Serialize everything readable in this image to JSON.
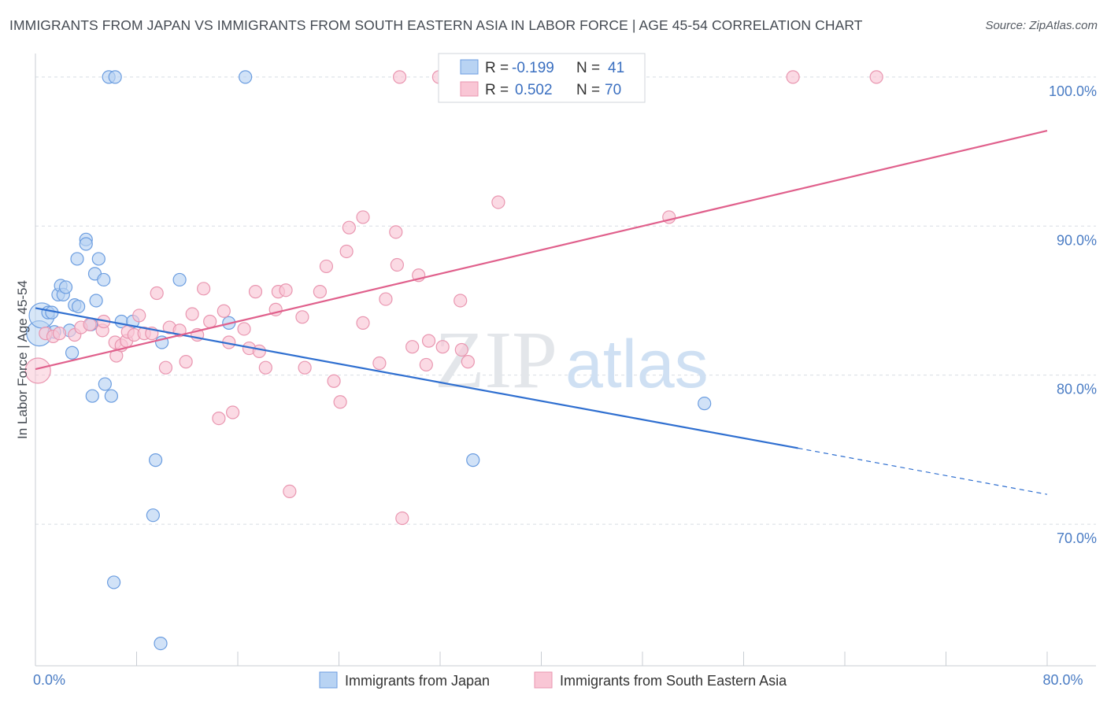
{
  "title": "IMMIGRANTS FROM JAPAN VS IMMIGRANTS FROM SOUTH EASTERN ASIA IN LABOR FORCE | AGE 45-54 CORRELATION CHART",
  "source": "Source: ZipAtlas.com",
  "watermark": {
    "zip": "ZIP",
    "atlas": "atlas"
  },
  "legend": {
    "r_label": "R =",
    "n_label": "N =",
    "japan": {
      "r": "-0.199",
      "n": "41"
    },
    "sea": {
      "r": "0.502",
      "n": "70"
    }
  },
  "colors": {
    "japan_fill": "#b8d3f3",
    "japan_stroke": "#6b9de0",
    "japan_line": "#2f6fd0",
    "sea_fill": "#f9c6d5",
    "sea_stroke": "#e996b0",
    "sea_line": "#e0608c",
    "grid": "#d8dde3",
    "tick_text": "#4a7cc4"
  },
  "chart_data": {
    "type": "scatter",
    "title": "IMMIGRANTS FROM JAPAN VS IMMIGRANTS FROM SOUTH EASTERN ASIA IN LABOR FORCE | AGE 45-54 CORRELATION CHART",
    "xlabel": "",
    "ylabel": "In Labor Force | Age 45-54",
    "xlim": [
      0,
      80
    ],
    "ylim": [
      60.5,
      102
    ],
    "x_tick_labels": [
      {
        "value": 0,
        "label": "0.0%"
      },
      {
        "value": 80,
        "label": "80.0%"
      }
    ],
    "x_minor_ticks": [
      8,
      16,
      24,
      32,
      40,
      48,
      56,
      64,
      72,
      80
    ],
    "y_ticks": [
      {
        "value": 100,
        "label": "100.0%"
      },
      {
        "value": 90,
        "label": "90.0%"
      },
      {
        "value": 80,
        "label": "80.0%"
      },
      {
        "value": 70,
        "label": "70.0%"
      }
    ],
    "series": [
      {
        "name": "Immigrants from Japan",
        "color": "#6b9de0",
        "points": [
          [
            0.3,
            82.8
          ],
          [
            0.5,
            84.0
          ],
          [
            1.0,
            84.2
          ],
          [
            1.3,
            84.2
          ],
          [
            1.5,
            82.9
          ],
          [
            1.8,
            85.4
          ],
          [
            2.0,
            86.0
          ],
          [
            2.2,
            85.4
          ],
          [
            2.4,
            85.9
          ],
          [
            2.7,
            83.0
          ],
          [
            2.9,
            81.5
          ],
          [
            3.1,
            84.7
          ],
          [
            3.3,
            87.8
          ],
          [
            3.4,
            84.6
          ],
          [
            4.0,
            89.1
          ],
          [
            4.0,
            88.8
          ],
          [
            4.4,
            83.4
          ],
          [
            4.5,
            78.6
          ],
          [
            4.7,
            86.8
          ],
          [
            4.8,
            85.0
          ],
          [
            5.0,
            87.8
          ],
          [
            5.4,
            86.4
          ],
          [
            5.5,
            79.4
          ],
          [
            5.8,
            100.0
          ],
          [
            6.0,
            78.6
          ],
          [
            6.2,
            66.1
          ],
          [
            6.3,
            100.0
          ],
          [
            6.8,
            83.6
          ],
          [
            7.7,
            83.6
          ],
          [
            9.5,
            74.3
          ],
          [
            9.3,
            70.6
          ],
          [
            9.9,
            62.0
          ],
          [
            10.0,
            82.2
          ],
          [
            11.4,
            86.4
          ],
          [
            15.3,
            83.5
          ],
          [
            16.6,
            100.0
          ],
          [
            34.6,
            74.3
          ],
          [
            52.9,
            78.1
          ]
        ],
        "regression": {
          "x0": 0,
          "y0": 84.5,
          "x1": 60.3,
          "y1": 75.1,
          "dash_to_x": 80,
          "dash_to_y": 72.0
        }
      },
      {
        "name": "Immigrants from South Eastern Asia",
        "color": "#e996b0",
        "points": [
          [
            0.2,
            80.3
          ],
          [
            0.8,
            82.8
          ],
          [
            1.4,
            82.6
          ],
          [
            1.9,
            82.8
          ],
          [
            3.1,
            82.7
          ],
          [
            3.6,
            83.2
          ],
          [
            4.3,
            83.4
          ],
          [
            5.3,
            83.0
          ],
          [
            5.4,
            83.6
          ],
          [
            6.3,
            82.2
          ],
          [
            6.4,
            81.3
          ],
          [
            6.8,
            82.0
          ],
          [
            7.2,
            82.3
          ],
          [
            7.3,
            82.9
          ],
          [
            7.8,
            82.7
          ],
          [
            8.2,
            84.0
          ],
          [
            8.6,
            82.8
          ],
          [
            9.2,
            82.8
          ],
          [
            9.6,
            85.5
          ],
          [
            10.3,
            80.5
          ],
          [
            10.6,
            83.2
          ],
          [
            11.4,
            83.0
          ],
          [
            11.9,
            80.9
          ],
          [
            12.4,
            84.1
          ],
          [
            12.8,
            82.7
          ],
          [
            13.3,
            85.8
          ],
          [
            13.8,
            83.6
          ],
          [
            14.5,
            77.1
          ],
          [
            14.9,
            84.3
          ],
          [
            15.3,
            82.2
          ],
          [
            15.6,
            77.5
          ],
          [
            16.5,
            83.1
          ],
          [
            16.9,
            81.8
          ],
          [
            17.4,
            85.6
          ],
          [
            17.7,
            81.6
          ],
          [
            18.2,
            80.5
          ],
          [
            19.0,
            84.4
          ],
          [
            19.2,
            85.6
          ],
          [
            19.8,
            85.7
          ],
          [
            20.1,
            72.2
          ],
          [
            21.1,
            83.9
          ],
          [
            21.3,
            80.5
          ],
          [
            22.5,
            85.6
          ],
          [
            23.0,
            87.3
          ],
          [
            23.6,
            79.6
          ],
          [
            24.1,
            78.2
          ],
          [
            24.6,
            88.3
          ],
          [
            24.8,
            89.9
          ],
          [
            25.9,
            83.5
          ],
          [
            25.9,
            90.6
          ],
          [
            27.2,
            80.8
          ],
          [
            27.7,
            85.1
          ],
          [
            28.5,
            89.6
          ],
          [
            28.6,
            87.4
          ],
          [
            28.8,
            100.0
          ],
          [
            29.0,
            70.4
          ],
          [
            29.8,
            81.9
          ],
          [
            30.3,
            86.7
          ],
          [
            30.9,
            80.7
          ],
          [
            31.1,
            82.3
          ],
          [
            31.9,
            100.0
          ],
          [
            32.2,
            81.9
          ],
          [
            33.6,
            85.0
          ],
          [
            33.7,
            81.7
          ],
          [
            34.2,
            80.9
          ],
          [
            36.6,
            91.6
          ],
          [
            50.1,
            90.6
          ],
          [
            59.9,
            100.0
          ],
          [
            66.5,
            100.0
          ]
        ],
        "regression": {
          "x0": 0,
          "y0": 80.4,
          "x1": 80,
          "y1": 96.4
        }
      }
    ],
    "bottom_legend": [
      "Immigrants from Japan",
      "Immigrants from South Eastern Asia"
    ]
  }
}
